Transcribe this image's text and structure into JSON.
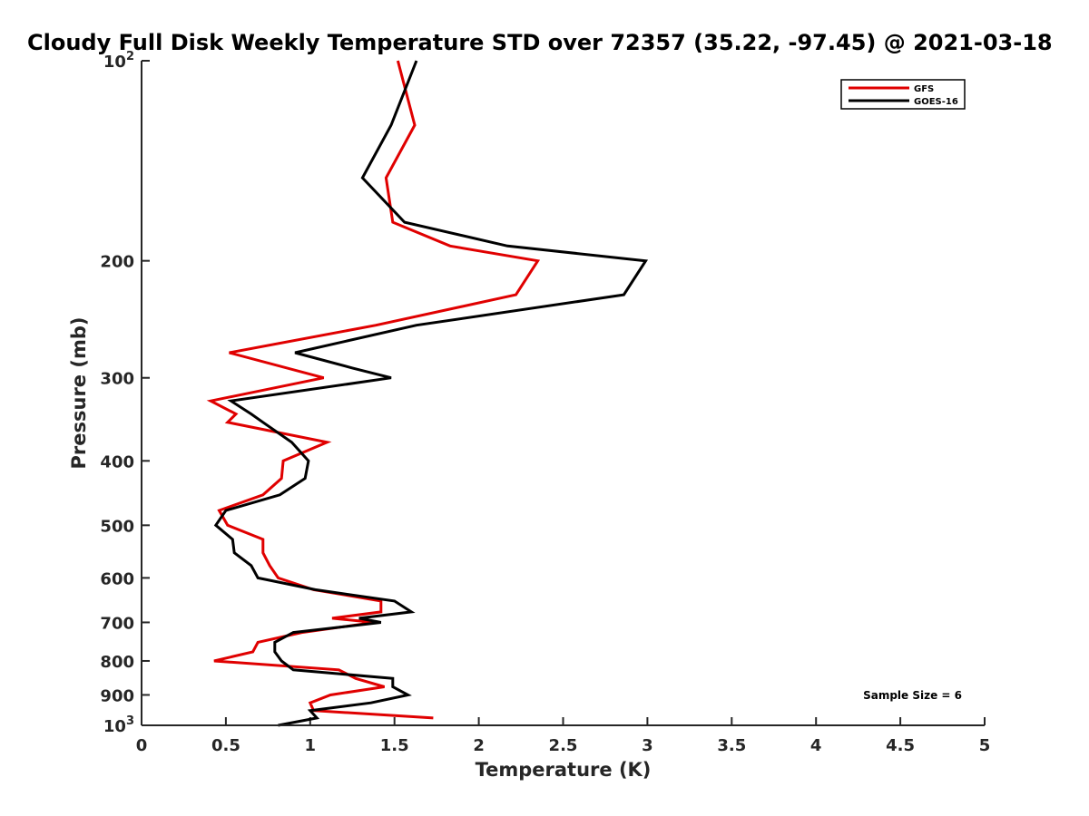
{
  "chart_data": {
    "type": "line",
    "title": "Cloudy Full Disk Weekly Temperature STD over 72357 (35.22, -97.45) @ 2021-03-18",
    "xlabel": "Temperature (K)",
    "ylabel": "Pressure (mb)",
    "xlim": [
      0,
      5
    ],
    "ylim": [
      100,
      1000
    ],
    "y_scale": "log",
    "y_reversed": true,
    "grid": false,
    "legend_position": "top-right",
    "x_ticks": [
      {
        "value": 0,
        "label": "0"
      },
      {
        "value": 0.5,
        "label": "0.5"
      },
      {
        "value": 1,
        "label": "1"
      },
      {
        "value": 1.5,
        "label": "1.5"
      },
      {
        "value": 2,
        "label": "2"
      },
      {
        "value": 2.5,
        "label": "2.5"
      },
      {
        "value": 3,
        "label": "3"
      },
      {
        "value": 3.5,
        "label": "3.5"
      },
      {
        "value": 4,
        "label": "4"
      },
      {
        "value": 4.5,
        "label": "4.5"
      },
      {
        "value": 5,
        "label": "5"
      }
    ],
    "y_ticks": [
      {
        "value": 100,
        "label": "10",
        "exponent": "2"
      },
      {
        "value": 200,
        "label": "200"
      },
      {
        "value": 300,
        "label": "300"
      },
      {
        "value": 400,
        "label": "400"
      },
      {
        "value": 500,
        "label": "500"
      },
      {
        "value": 600,
        "label": "600"
      },
      {
        "value": 700,
        "label": "700"
      },
      {
        "value": 800,
        "label": "800"
      },
      {
        "value": 900,
        "label": "900"
      },
      {
        "value": 1000,
        "label": "10",
        "exponent": "3"
      }
    ],
    "series": [
      {
        "name": "GFS",
        "color": "#e00000",
        "points": [
          [
            1.52,
            100
          ],
          [
            1.62,
            125
          ],
          [
            1.45,
            150
          ],
          [
            1.49,
            175
          ],
          [
            1.83,
            190
          ],
          [
            2.35,
            200
          ],
          [
            2.22,
            225
          ],
          [
            1.39,
            250
          ],
          [
            0.52,
            275
          ],
          [
            1.08,
            300
          ],
          [
            0.41,
            325
          ],
          [
            0.56,
            340
          ],
          [
            0.51,
            350
          ],
          [
            1.1,
            375
          ],
          [
            0.84,
            400
          ],
          [
            0.83,
            425
          ],
          [
            0.72,
            450
          ],
          [
            0.46,
            475
          ],
          [
            0.51,
            500
          ],
          [
            0.72,
            525
          ],
          [
            0.72,
            550
          ],
          [
            0.76,
            575
          ],
          [
            0.81,
            600
          ],
          [
            1.02,
            625
          ],
          [
            1.42,
            650
          ],
          [
            1.42,
            675
          ],
          [
            1.13,
            690
          ],
          [
            1.38,
            700
          ],
          [
            0.95,
            725
          ],
          [
            0.69,
            750
          ],
          [
            0.66,
            775
          ],
          [
            0.43,
            800
          ],
          [
            1.17,
            825
          ],
          [
            1.27,
            850
          ],
          [
            1.44,
            875
          ],
          [
            1.12,
            900
          ],
          [
            1.0,
            925
          ],
          [
            1.02,
            950
          ],
          [
            1.73,
            975
          ]
        ]
      },
      {
        "name": "GOES-16",
        "color": "#000000",
        "points": [
          [
            1.63,
            100
          ],
          [
            1.48,
            125
          ],
          [
            1.31,
            150
          ],
          [
            1.56,
            175
          ],
          [
            2.17,
            190
          ],
          [
            2.99,
            200
          ],
          [
            2.86,
            225
          ],
          [
            1.63,
            250
          ],
          [
            0.91,
            275
          ],
          [
            1.25,
            290
          ],
          [
            1.48,
            300
          ],
          [
            0.53,
            325
          ],
          [
            0.65,
            340
          ],
          [
            0.72,
            350
          ],
          [
            0.89,
            375
          ],
          [
            0.99,
            400
          ],
          [
            0.97,
            425
          ],
          [
            0.82,
            450
          ],
          [
            0.5,
            475
          ],
          [
            0.44,
            500
          ],
          [
            0.54,
            525
          ],
          [
            0.55,
            550
          ],
          [
            0.65,
            575
          ],
          [
            0.69,
            600
          ],
          [
            1.03,
            625
          ],
          [
            1.5,
            650
          ],
          [
            1.6,
            675
          ],
          [
            1.29,
            690
          ],
          [
            1.42,
            700
          ],
          [
            0.9,
            725
          ],
          [
            0.79,
            750
          ],
          [
            0.79,
            775
          ],
          [
            0.83,
            800
          ],
          [
            0.9,
            825
          ],
          [
            1.49,
            850
          ],
          [
            1.49,
            875
          ],
          [
            1.58,
            900
          ],
          [
            1.36,
            925
          ],
          [
            1.0,
            950
          ],
          [
            1.04,
            975
          ],
          [
            0.81,
            1000
          ]
        ]
      }
    ],
    "annotation": "Sample Size = 6"
  }
}
